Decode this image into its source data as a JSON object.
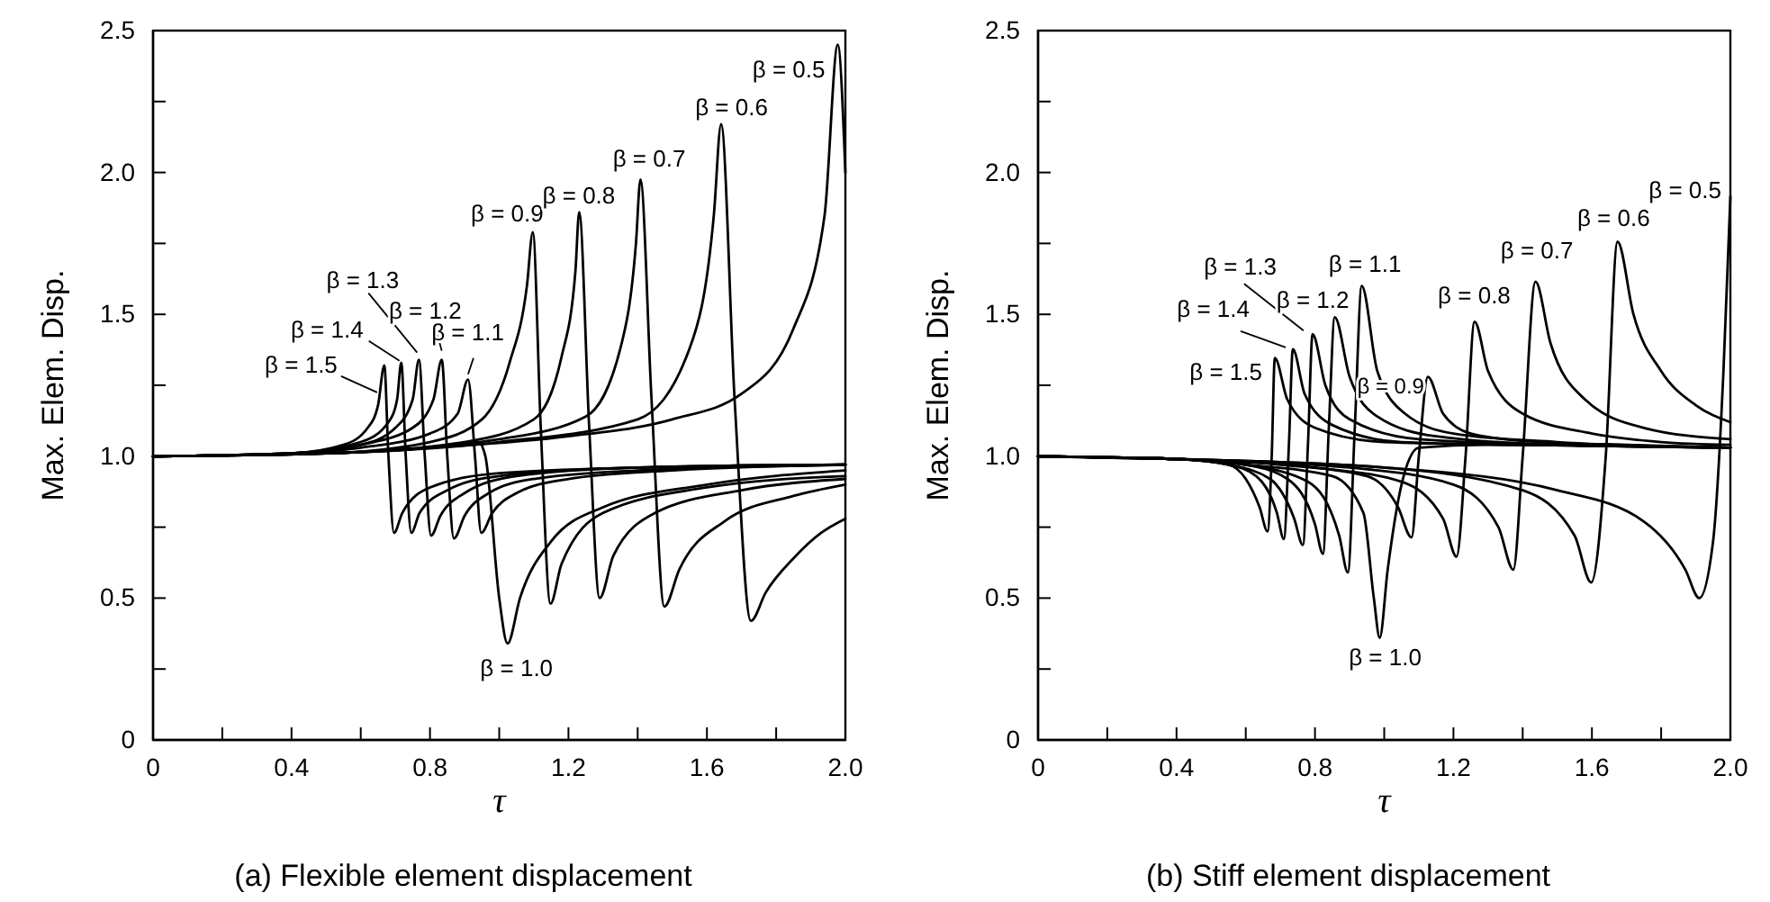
{
  "chart_data": [
    {
      "type": "line",
      "title": "(a) Flexible element displacement",
      "xlabel": "τ",
      "ylabel": "Max. Elem. Disp.",
      "line_style": "solid",
      "xlim": [
        0,
        2
      ],
      "ylim": [
        0,
        2.5
      ],
      "xticks": [
        0,
        {
          "value": 0.2,
          "label": null
        },
        0.4,
        {
          "value": 0.6,
          "label": null
        },
        0.8,
        {
          "value": 1,
          "label": null
        },
        1.2,
        {
          "value": 1.4,
          "label": null
        },
        1.6,
        {
          "value": 1.8,
          "label": null
        },
        {
          "value": 2,
          "label": "2.0"
        }
      ],
      "yticks": [
        0,
        {
          "value": 0.25,
          "label": null
        },
        0.5,
        {
          "value": 0.75,
          "label": null
        },
        {
          "value": 1,
          "label": "1.0"
        },
        {
          "value": 1.25,
          "label": null
        },
        1.5,
        {
          "value": 1.75,
          "label": null
        },
        {
          "value": 2,
          "label": "2.0"
        },
        {
          "value": 2.25,
          "label": null
        },
        2.5
      ],
      "series": [
        {
          "name": "β = 1.5",
          "color": "#000000",
          "x": [
            0,
            0.4,
            0.55,
            0.62,
            0.65,
            0.668,
            0.68,
            0.696,
            0.72,
            0.8,
            1.0,
            1.4,
            2.0
          ],
          "values": [
            1.0,
            1.01,
            1.04,
            1.1,
            1.18,
            1.32,
            1.0,
            0.73,
            0.8,
            0.89,
            0.94,
            0.96,
            0.97
          ]
        },
        {
          "name": "β = 1.4",
          "color": "#000000",
          "x": [
            0,
            0.4,
            0.6,
            0.68,
            0.705,
            0.717,
            0.73,
            0.746,
            0.77,
            0.85,
            1.0,
            1.4,
            2.0
          ],
          "values": [
            1.0,
            1.01,
            1.05,
            1.12,
            1.2,
            1.33,
            1.0,
            0.73,
            0.8,
            0.88,
            0.93,
            0.96,
            0.97
          ]
        },
        {
          "name": "β = 1.3",
          "color": "#000000",
          "x": [
            0,
            0.4,
            0.6,
            0.7,
            0.75,
            0.768,
            0.785,
            0.803,
            0.83,
            0.9,
            1.05,
            1.4,
            2.0
          ],
          "values": [
            1.0,
            1.01,
            1.04,
            1.1,
            1.2,
            1.34,
            1.0,
            0.72,
            0.79,
            0.87,
            0.93,
            0.96,
            0.97
          ]
        },
        {
          "name": "β = 1.2",
          "color": "#000000",
          "x": [
            0,
            0.4,
            0.6,
            0.75,
            0.81,
            0.834,
            0.85,
            0.869,
            0.9,
            0.97,
            1.1,
            1.4,
            2.0
          ],
          "values": [
            1.0,
            1.01,
            1.04,
            1.1,
            1.2,
            1.34,
            1.0,
            0.71,
            0.79,
            0.87,
            0.92,
            0.95,
            0.97
          ]
        },
        {
          "name": "β = 1.1",
          "color": "#000000",
          "x": [
            0,
            0.4,
            0.6,
            0.8,
            0.88,
            0.91,
            0.93,
            0.948,
            0.98,
            1.05,
            1.2,
            1.5,
            2.0
          ],
          "values": [
            1.0,
            1.01,
            1.03,
            1.08,
            1.15,
            1.27,
            1.0,
            0.73,
            0.8,
            0.87,
            0.92,
            0.95,
            0.97
          ]
        },
        {
          "name": "β = 1.0",
          "color": "#000000",
          "x": [
            0,
            0.5,
            0.8,
            0.94,
            0.96,
            1.0,
            1.024,
            1.06,
            1.15,
            1.3,
            1.6,
            2.0
          ],
          "values": [
            1.0,
            1.01,
            1.03,
            1.05,
            1.0,
            0.5,
            0.34,
            0.5,
            0.7,
            0.82,
            0.9,
            0.95
          ]
        },
        {
          "name": "β = 0.9",
          "color": "#000000",
          "x": [
            0,
            0.5,
            0.8,
            0.95,
            1.03,
            1.08,
            1.097,
            1.12,
            1.148,
            1.18,
            1.3,
            1.6,
            2.0
          ],
          "values": [
            1.0,
            1.01,
            1.05,
            1.13,
            1.33,
            1.6,
            1.79,
            1.1,
            0.48,
            0.62,
            0.8,
            0.89,
            0.93
          ]
        },
        {
          "name": "β = 0.8",
          "color": "#000000",
          "x": [
            0,
            0.5,
            0.9,
            1.1,
            1.18,
            1.22,
            1.231,
            1.26,
            1.29,
            1.33,
            1.45,
            1.7,
            2.0
          ],
          "values": [
            1.0,
            1.01,
            1.05,
            1.13,
            1.35,
            1.65,
            1.86,
            1.1,
            0.5,
            0.65,
            0.8,
            0.88,
            0.92
          ]
        },
        {
          "name": "β = 0.7",
          "color": "#000000",
          "x": [
            0,
            0.5,
            1.0,
            1.25,
            1.35,
            1.395,
            1.408,
            1.44,
            1.477,
            1.52,
            1.65,
            1.85,
            2.0
          ],
          "values": [
            1.0,
            1.01,
            1.06,
            1.14,
            1.38,
            1.75,
            1.975,
            1.2,
            0.47,
            0.6,
            0.77,
            0.86,
            0.9
          ]
        },
        {
          "name": "β = 0.6",
          "color": "#000000",
          "x": [
            0,
            0.5,
            1.0,
            1.4,
            1.55,
            1.62,
            1.641,
            1.68,
            1.727,
            1.77,
            1.85,
            1.93,
            2.0
          ],
          "values": [
            1.0,
            1.01,
            1.05,
            1.13,
            1.38,
            1.85,
            2.17,
            1.2,
            0.42,
            0.52,
            0.64,
            0.73,
            0.78
          ]
        },
        {
          "name": "β = 0.5",
          "color": "#000000",
          "x": [
            0,
            0.5,
            0.8,
            1.2,
            1.5,
            1.7,
            1.85,
            1.94,
            1.978,
            2.0
          ],
          "values": [
            1.0,
            1.01,
            1.03,
            1.07,
            1.13,
            1.22,
            1.45,
            1.85,
            2.45,
            2.0
          ]
        }
      ]
    },
    {
      "type": "line",
      "title": "(b) Stiff element displacement",
      "xlabel": "τ",
      "ylabel": "Max. Elem. Disp.",
      "line_style": "solid",
      "xlim": [
        0,
        2
      ],
      "ylim": [
        0,
        2.5
      ],
      "xticks": [
        0,
        {
          "value": 0.2,
          "label": null
        },
        0.4,
        {
          "value": 0.6,
          "label": null
        },
        0.8,
        {
          "value": 1,
          "label": null
        },
        1.2,
        {
          "value": 1.4,
          "label": null
        },
        1.6,
        {
          "value": 1.8,
          "label": null
        },
        {
          "value": 2,
          "label": "2.0"
        }
      ],
      "yticks": [
        0,
        {
          "value": 0.25,
          "label": null
        },
        0.5,
        {
          "value": 0.75,
          "label": null
        },
        {
          "value": 1,
          "label": "1.0"
        },
        {
          "value": 1.25,
          "label": null
        },
        1.5,
        {
          "value": 1.75,
          "label": null
        },
        {
          "value": 2,
          "label": "2.0"
        },
        {
          "value": 2.25,
          "label": null
        },
        2.5
      ],
      "series": [
        {
          "name": "β = 1.5",
          "color": "#000000",
          "x": [
            0,
            0.4,
            0.55,
            0.6,
            0.64,
            0.663,
            0.675,
            0.684,
            0.72,
            0.8,
            1.0,
            1.4,
            2.0
          ],
          "values": [
            1.0,
            0.99,
            0.97,
            0.92,
            0.82,
            0.735,
            1.0,
            1.346,
            1.2,
            1.1,
            1.05,
            1.04,
            1.03
          ]
        },
        {
          "name": "β = 1.4",
          "color": "#000000",
          "x": [
            0,
            0.4,
            0.55,
            0.63,
            0.69,
            0.71,
            0.725,
            0.736,
            0.77,
            0.85,
            1.05,
            1.4,
            2.0
          ],
          "values": [
            1.0,
            0.99,
            0.97,
            0.93,
            0.8,
            0.708,
            1.05,
            1.377,
            1.22,
            1.11,
            1.05,
            1.04,
            1.03
          ]
        },
        {
          "name": "β = 1.3",
          "color": "#000000",
          "x": [
            0,
            0.4,
            0.55,
            0.67,
            0.74,
            0.765,
            0.78,
            0.793,
            0.83,
            0.9,
            1.1,
            1.5,
            2.0
          ],
          "values": [
            1.0,
            0.99,
            0.97,
            0.92,
            0.78,
            0.687,
            1.05,
            1.43,
            1.25,
            1.13,
            1.06,
            1.04,
            1.03
          ]
        },
        {
          "name": "β = 1.2",
          "color": "#000000",
          "x": [
            0,
            0.4,
            0.6,
            0.72,
            0.8,
            0.823,
            0.84,
            0.857,
            0.9,
            0.98,
            1.15,
            1.5,
            2.0
          ],
          "values": [
            1.0,
            0.99,
            0.97,
            0.92,
            0.76,
            0.656,
            1.1,
            1.49,
            1.28,
            1.14,
            1.07,
            1.04,
            1.03
          ]
        },
        {
          "name": "β = 1.1",
          "color": "#000000",
          "x": [
            0,
            0.4,
            0.6,
            0.78,
            0.87,
            0.895,
            0.915,
            0.935,
            0.98,
            1.06,
            1.2,
            1.5,
            2.0
          ],
          "values": [
            1.0,
            0.99,
            0.97,
            0.91,
            0.72,
            0.59,
            1.1,
            1.6,
            1.3,
            1.15,
            1.08,
            1.05,
            1.03
          ]
        },
        {
          "name": "β = 1.0",
          "color": "#000000",
          "x": [
            0,
            0.4,
            0.6,
            0.85,
            0.94,
            0.97,
            0.987,
            1.01,
            1.05,
            1.1,
            1.3,
            2.0
          ],
          "values": [
            1.0,
            0.99,
            0.97,
            0.93,
            0.8,
            0.5,
            0.36,
            0.6,
            0.9,
            1.03,
            1.04,
            1.03
          ]
        },
        {
          "name": "β = 0.9",
          "color": "#000000",
          "x": [
            0,
            0.4,
            0.7,
            0.95,
            1.04,
            1.079,
            1.1,
            1.126,
            1.17,
            1.25,
            1.45,
            1.7,
            2.0
          ],
          "values": [
            1.0,
            0.99,
            0.97,
            0.93,
            0.82,
            0.714,
            1.0,
            1.28,
            1.15,
            1.08,
            1.05,
            1.04,
            1.03
          ]
        },
        {
          "name": "β = 0.8",
          "color": "#000000",
          "x": [
            0,
            0.4,
            0.8,
            1.05,
            1.17,
            1.209,
            1.235,
            1.261,
            1.3,
            1.4,
            1.6,
            1.8,
            2.0
          ],
          "values": [
            1.0,
            0.99,
            0.96,
            0.91,
            0.78,
            0.646,
            1.0,
            1.474,
            1.3,
            1.15,
            1.08,
            1.05,
            1.04
          ]
        },
        {
          "name": "β = 0.7",
          "color": "#000000",
          "x": [
            0,
            0.4,
            0.9,
            1.2,
            1.33,
            1.373,
            1.4,
            1.437,
            1.48,
            1.58,
            1.75,
            2.0
          ],
          "values": [
            1.0,
            0.99,
            0.96,
            0.9,
            0.75,
            0.6,
            1.0,
            1.615,
            1.4,
            1.2,
            1.1,
            1.06
          ]
        },
        {
          "name": "β = 0.6",
          "color": "#000000",
          "x": [
            0,
            0.4,
            1.0,
            1.4,
            1.55,
            1.598,
            1.64,
            1.674,
            1.72,
            1.8,
            1.9,
            2.0
          ],
          "values": [
            1.0,
            0.99,
            0.96,
            0.88,
            0.72,
            0.555,
            1.0,
            1.756,
            1.5,
            1.3,
            1.18,
            1.12
          ]
        },
        {
          "name": "β = 0.5",
          "color": "#000000",
          "x": [
            0,
            0.4,
            1.0,
            1.5,
            1.75,
            1.87,
            1.91,
            1.95,
            1.98,
            2.0
          ],
          "values": [
            1.0,
            0.99,
            0.96,
            0.88,
            0.77,
            0.6,
            0.5,
            0.7,
            1.3,
            1.915
          ]
        }
      ]
    }
  ]
}
